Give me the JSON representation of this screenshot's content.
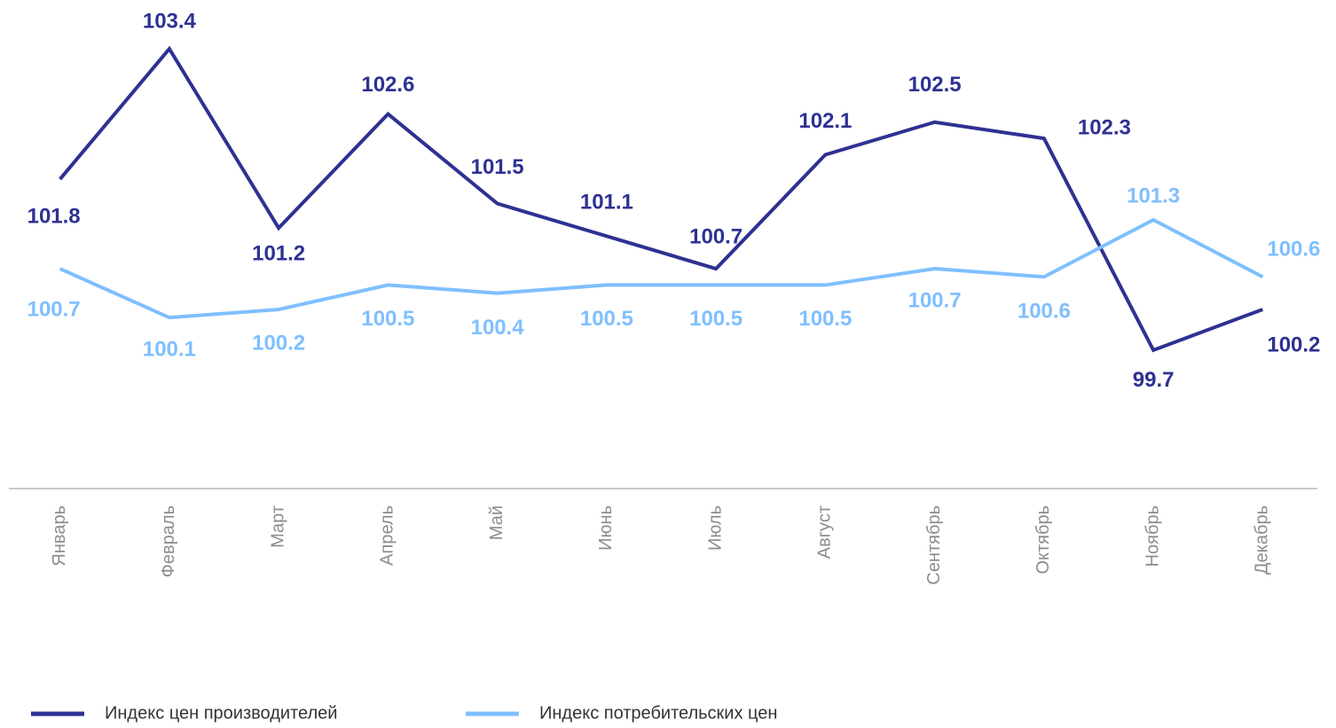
{
  "chart_data": {
    "type": "line",
    "categories": [
      "Январь",
      "Февраль",
      "Март",
      "Апрель",
      "Май",
      "Июнь",
      "Июль",
      "Август",
      "Сентябрь",
      "Октябрь",
      "Ноябрь",
      "Декабрь"
    ],
    "series": [
      {
        "name": "Индекс цен производителей",
        "color": "#2e3192",
        "values": [
          101.8,
          103.4,
          101.2,
          102.6,
          101.5,
          101.1,
          100.7,
          102.1,
          102.5,
          102.3,
          99.7,
          100.2
        ]
      },
      {
        "name": "Индекс потребительских цен",
        "color": "#7fbfff",
        "values": [
          100.7,
          100.1,
          100.2,
          100.5,
          100.4,
          100.5,
          100.5,
          100.5,
          100.7,
          100.6,
          101.3,
          100.6
        ]
      }
    ],
    "ylim": [
      98,
      104
    ]
  }
}
